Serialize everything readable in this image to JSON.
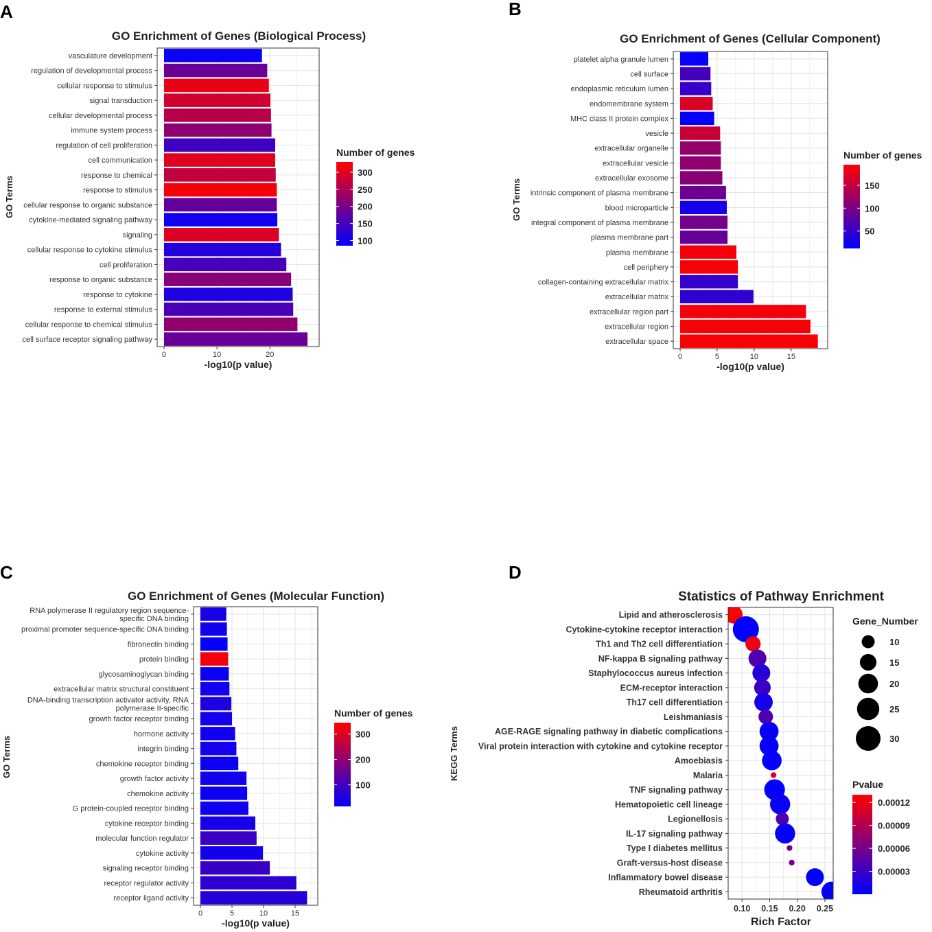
{
  "panels": {
    "A": {
      "letter": "A"
    },
    "B": {
      "letter": "B"
    },
    "C": {
      "letter": "C"
    },
    "D": {
      "letter": "D"
    }
  },
  "chart_data": [
    {
      "id": "A",
      "type": "bar",
      "title": "GO Enrichment of Genes (Biological Process)",
      "xlabel": "-log10(p value)",
      "ylabel": "GO Terms",
      "xlim": [
        0,
        28
      ],
      "xticks": [
        0,
        10,
        20
      ],
      "color_label": "Number of genes",
      "color_range": [
        85,
        330
      ],
      "color_ticks": [
        100,
        150,
        200,
        250,
        300
      ],
      "categories": [
        "vasculature development",
        "regulation of developmental process",
        "cellular response to stimulus",
        "signal transduction",
        "cellular developmental process",
        "immune system process",
        "regulation of cell proliferation",
        "cell communication",
        "response to chemical",
        "response to stimulus",
        "cellular response to organic substance",
        "cytokine-mediated signaling pathway",
        "signaling",
        "cellular response to cytokine stimulus",
        "cell proliferation",
        "response to organic substance",
        "response to cytokine",
        "response to external stimulus",
        "cellular response to chemical stimulus",
        "cell surface receptor signaling pathway"
      ],
      "values": [
        18.5,
        19.5,
        19.8,
        20.1,
        20.2,
        20.3,
        21.0,
        21.0,
        21.1,
        21.3,
        21.3,
        21.4,
        21.7,
        22.1,
        23.1,
        24.0,
        24.3,
        24.4,
        25.2,
        27.1
      ],
      "counts": [
        95,
        185,
        310,
        285,
        260,
        220,
        145,
        300,
        270,
        320,
        180,
        100,
        295,
        120,
        150,
        215,
        115,
        155,
        225,
        185
      ]
    },
    {
      "id": "B",
      "type": "bar",
      "title": "GO Enrichment of Genes (Cellular Component)",
      "xlabel": "-log10(p value)",
      "ylabel": "GO Terms",
      "xlim": [
        0,
        19
      ],
      "xticks": [
        0,
        5,
        10,
        15
      ],
      "color_label": "Number of genes",
      "color_range": [
        12,
        195
      ],
      "color_ticks": [
        50,
        100,
        150
      ],
      "categories": [
        "platelet alpha granule lumen",
        "cell surface",
        "endoplasmic reticulum lumen",
        "endomembrane system",
        "MHC class II protein complex",
        "vesicle",
        "extracellular organelle",
        "extracellular vesicle",
        "extracellular exosome",
        "intrinsic component of plasma membrane",
        "blood microparticle",
        "integral component of plasma membrane",
        "plasma membrane part",
        "plasma membrane",
        "cell periphery",
        "collagen-containing extracellular matrix",
        "extracellular matrix",
        "extracellular region part",
        "extracellular region",
        "extracellular space"
      ],
      "values": [
        3.8,
        4.1,
        4.2,
        4.4,
        4.6,
        5.4,
        5.5,
        5.5,
        5.7,
        6.2,
        6.3,
        6.4,
        6.4,
        7.6,
        7.8,
        7.8,
        9.9,
        17.0,
        17.6,
        18.6
      ],
      "counts": [
        18,
        60,
        50,
        170,
        15,
        155,
        120,
        115,
        110,
        90,
        28,
        95,
        85,
        188,
        190,
        50,
        45,
        188,
        190,
        192
      ]
    },
    {
      "id": "C",
      "type": "bar",
      "title": "GO Enrichment of Genes (Molecular Function)",
      "xlabel": "-log10(p value)",
      "ylabel": "GO Terms",
      "xlim": [
        0,
        17.5
      ],
      "xticks": [
        0,
        5,
        10,
        15
      ],
      "color_label": "Number of genes",
      "color_range": [
        15,
        345
      ],
      "color_ticks": [
        100,
        200,
        300
      ],
      "categories": [
        "RNA polymerase II regulatory region sequence-specific DNA binding",
        "proximal promoter sequence-specific DNA binding",
        "fibronectin binding",
        "protein binding",
        "glycosaminoglycan binding",
        "extracellular matrix structural constituent",
        "DNA-binding transcription activator activity, RNA polymerase II-specific",
        "growth factor receptor binding",
        "hormone activity",
        "integrin binding",
        "chemokine receptor binding",
        "growth factor activity",
        "chemokine activity",
        "G protein-coupled receptor binding",
        "cytokine receptor binding",
        "molecular function regulator",
        "cytokine activity",
        "signaling receptor binding",
        "receptor regulator activity",
        "receptor ligand activity"
      ],
      "values": [
        4.1,
        4.2,
        4.3,
        4.4,
        4.5,
        4.6,
        4.9,
        5.0,
        5.5,
        5.7,
        6.0,
        7.3,
        7.4,
        7.6,
        8.7,
        8.9,
        9.9,
        11.0,
        15.2,
        16.9
      ],
      "counts": [
        45,
        40,
        20,
        330,
        30,
        40,
        55,
        40,
        35,
        40,
        30,
        40,
        30,
        35,
        45,
        90,
        40,
        85,
        75,
        65
      ]
    },
    {
      "id": "D",
      "type": "scatter",
      "title": "Statistics of Pathway Enrichment",
      "xlabel": "Rich Factor",
      "ylabel": "KEGG Terms",
      "xlim": [
        0.075,
        0.265
      ],
      "xticks": [
        0.1,
        0.15,
        0.2,
        0.25
      ],
      "xtick_labels": [
        "0.10",
        "0.15",
        "0.20",
        "0.25"
      ],
      "size_label": "Gene_Number",
      "size_ticks": [
        10,
        15,
        20,
        25,
        30
      ],
      "size_range": [
        2,
        33
      ],
      "color_label": "Pvalue",
      "color_range": [
        0.0,
        0.00013
      ],
      "color_ticks": [
        3e-05,
        6e-05,
        9e-05,
        0.00012
      ],
      "color_tick_labels": [
        "0.00003",
        "0.00006",
        "0.00009",
        "0.00012"
      ],
      "categories": [
        "Lipid and atherosclerosis",
        "Cytokine-cytokine receptor interaction",
        "Th1 and Th2 cell differentiation",
        "NF-kappa B signaling pathway",
        "Staphylococcus aureus infection",
        "ECM-receptor interaction",
        "Th17 cell differentiation",
        "Leishmaniasis",
        "AGE-RAGE signaling pathway in diabetic complications",
        "Viral protein interaction with cytokine and cytokine receptor",
        "Amoebiasis",
        "Malaria",
        "TNF signaling pathway",
        "Hematopoietic cell lineage",
        "Legionellosis",
        "IL-17 signaling pathway",
        "Type I diabetes mellitus",
        "Graft-versus-host disease",
        "Inflammatory bowel disease",
        "Rheumatoid arthritis"
      ],
      "x": [
        0.085,
        0.107,
        0.12,
        0.128,
        0.135,
        0.137,
        0.139,
        0.143,
        0.149,
        0.149,
        0.154,
        0.157,
        0.159,
        0.169,
        0.173,
        0.178,
        0.186,
        0.19,
        0.232,
        0.262
      ],
      "gene_number": [
        17,
        33,
        13,
        17,
        17,
        15,
        18,
        12,
        19,
        19,
        20,
        3,
        22,
        21,
        10,
        21,
        3,
        3,
        17,
        21
      ],
      "pvalue": [
        0.00013,
        2e-07,
        0.00012,
        4e-05,
        2e-05,
        3e-05,
        1e-05,
        4e-05,
        3e-06,
        3e-06,
        2e-06,
        0.00011,
        2e-06,
        5e-06,
        4e-05,
        2e-06,
        6e-05,
        6e-05,
        1e-06,
        1e-06
      ]
    }
  ]
}
